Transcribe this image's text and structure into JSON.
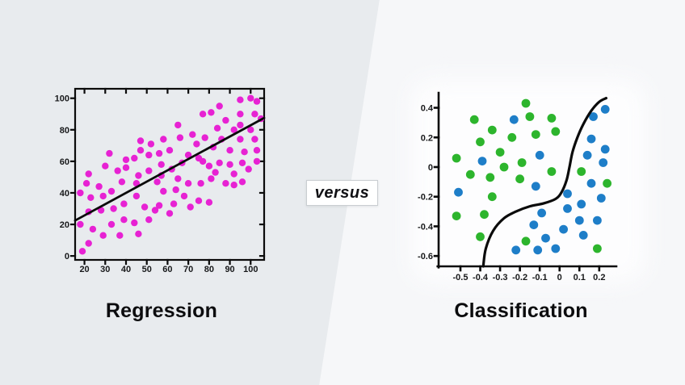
{
  "page": {
    "versus_label": "versus",
    "background": {
      "left_color": "#e8ebee",
      "right_color": "#f6f7f9",
      "divider_top_x": 470,
      "divider_bottom_x": 395
    }
  },
  "panels": {
    "left": {
      "title": "Regression"
    },
    "right": {
      "title": "Classification"
    }
  },
  "chart_data": [
    {
      "type": "scatter",
      "title": "Regression",
      "xlabel": "",
      "ylabel": "",
      "frame": "box",
      "grid": false,
      "legend": "none",
      "xlim": [
        15.5,
        106.5
      ],
      "ylim": [
        -2.5,
        106
      ],
      "x_tick_labels": [
        "20",
        "30",
        "40",
        "50",
        "60",
        "70",
        "80",
        "90",
        "100"
      ],
      "x_tick_values": [
        20,
        30,
        40,
        50,
        60,
        70,
        80,
        90,
        100
      ],
      "y_tick_labels": [
        "0",
        "20",
        "40",
        "60",
        "80",
        "100"
      ],
      "y_tick_values": [
        0,
        20,
        40,
        60,
        80,
        100
      ],
      "series": [
        {
          "name": "sample-points",
          "type": "points",
          "marker": "circle",
          "color": "#e722d3",
          "points": [
            [
              95,
              99
            ],
            [
              100,
              100
            ],
            [
              103,
              98
            ],
            [
              95,
              90
            ],
            [
              85,
              95
            ],
            [
              81,
              91
            ],
            [
              88,
              86
            ],
            [
              95,
              83
            ],
            [
              102,
              90
            ],
            [
              105,
              87
            ],
            [
              77,
              90
            ],
            [
              84,
              81
            ],
            [
              92,
              80
            ],
            [
              100,
              80
            ],
            [
              65,
              83
            ],
            [
              72,
              77
            ],
            [
              78,
              75
            ],
            [
              86,
              74
            ],
            [
              95,
              74
            ],
            [
              102,
              74
            ],
            [
              66,
              75
            ],
            [
              74,
              71
            ],
            [
              82,
              69
            ],
            [
              90,
              67
            ],
            [
              97,
              66
            ],
            [
              103,
              67
            ],
            [
              47,
              73
            ],
            [
              52,
              71
            ],
            [
              58,
              74
            ],
            [
              61,
              67
            ],
            [
              56,
              65
            ],
            [
              47,
              67
            ],
            [
              51,
              64
            ],
            [
              44,
              62
            ],
            [
              40,
              61
            ],
            [
              70,
              64
            ],
            [
              75,
              62
            ],
            [
              67,
              59
            ],
            [
              57,
              58
            ],
            [
              62,
              55
            ],
            [
              32,
              65
            ],
            [
              30,
              57
            ],
            [
              36,
              54
            ],
            [
              40,
              56
            ],
            [
              51,
              54
            ],
            [
              57,
              51
            ],
            [
              46,
              51
            ],
            [
              80,
              57
            ],
            [
              85,
              59
            ],
            [
              90,
              58
            ],
            [
              96,
              59
            ],
            [
              103,
              60
            ],
            [
              99,
              55
            ],
            [
              92,
              52
            ],
            [
              83,
              53
            ],
            [
              77,
              60
            ],
            [
              22,
              52
            ],
            [
              21,
              46
            ],
            [
              27,
              44
            ],
            [
              33,
              41
            ],
            [
              18,
              40
            ],
            [
              23,
              37
            ],
            [
              29,
              38
            ],
            [
              38,
              47
            ],
            [
              45,
              46
            ],
            [
              55,
              47
            ],
            [
              45,
              38
            ],
            [
              39,
              33
            ],
            [
              34,
              30
            ],
            [
              28,
              29
            ],
            [
              22,
              28
            ],
            [
              18,
              20
            ],
            [
              24,
              17
            ],
            [
              29,
              13
            ],
            [
              22,
              8
            ],
            [
              19,
              3
            ],
            [
              33,
              20
            ],
            [
              37,
              13
            ],
            [
              39,
              23
            ],
            [
              44,
              21
            ],
            [
              46,
              14
            ],
            [
              51,
              23
            ],
            [
              49,
              31
            ],
            [
              54,
              29
            ],
            [
              56,
              32
            ],
            [
              58,
              41
            ],
            [
              64,
              42
            ],
            [
              63,
              33
            ],
            [
              61,
              27
            ],
            [
              68,
              38
            ],
            [
              71,
              31
            ],
            [
              75,
              35
            ],
            [
              65,
              49
            ],
            [
              70,
              46
            ],
            [
              76,
              46
            ],
            [
              81,
              49
            ],
            [
              88,
              46
            ],
            [
              92,
              45
            ],
            [
              96,
              47
            ],
            [
              80,
              34
            ]
          ]
        },
        {
          "name": "regression-fit-line",
          "type": "line",
          "color": "#0b0b0b",
          "points": [
            [
              15.5,
              22.5
            ],
            [
              106.5,
              87.5
            ]
          ]
        }
      ]
    },
    {
      "type": "scatter",
      "title": "Classification",
      "xlabel": "",
      "ylabel": "",
      "frame": "axes",
      "grid": false,
      "legend": "none",
      "xlim": [
        -0.61,
        0.27
      ],
      "ylim": [
        -0.67,
        0.49
      ],
      "x_tick_labels": [
        "-0.5",
        "-0.4",
        "-0.3",
        "-0.2",
        "-0.1",
        "0",
        "0.1",
        "0.2"
      ],
      "x_tick_values": [
        -0.5,
        -0.4,
        -0.3,
        -0.2,
        -0.1,
        0,
        0.1,
        0.2
      ],
      "y_tick_labels": [
        "0.4",
        "0.2",
        "0",
        "-0.2",
        "-0.4",
        "-0.6"
      ],
      "y_tick_values": [
        0.4,
        0.2,
        0,
        -0.2,
        -0.4,
        -0.6
      ],
      "series": [
        {
          "name": "class-a-green",
          "type": "points",
          "marker": "circle",
          "color": "#2db52d",
          "points": [
            [
              -0.17,
              0.43
            ],
            [
              -0.43,
              0.32
            ],
            [
              -0.15,
              0.34
            ],
            [
              -0.04,
              0.33
            ],
            [
              -0.34,
              0.25
            ],
            [
              -0.02,
              0.24
            ],
            [
              -0.24,
              0.2
            ],
            [
              -0.12,
              0.22
            ],
            [
              -0.4,
              0.17
            ],
            [
              -0.3,
              0.1
            ],
            [
              -0.52,
              0.06
            ],
            [
              -0.28,
              0.0
            ],
            [
              -0.19,
              0.03
            ],
            [
              -0.45,
              -0.05
            ],
            [
              -0.35,
              -0.07
            ],
            [
              -0.04,
              -0.03
            ],
            [
              -0.2,
              -0.08
            ],
            [
              0.11,
              -0.03
            ],
            [
              0.24,
              -0.11
            ],
            [
              -0.34,
              -0.2
            ],
            [
              -0.52,
              -0.33
            ],
            [
              -0.38,
              -0.32
            ],
            [
              -0.4,
              -0.47
            ],
            [
              -0.17,
              -0.5
            ],
            [
              0.19,
              -0.55
            ]
          ]
        },
        {
          "name": "class-b-blue",
          "type": "points",
          "marker": "circle",
          "color": "#1e7ec8",
          "points": [
            [
              -0.23,
              0.32
            ],
            [
              0.23,
              0.39
            ],
            [
              0.17,
              0.34
            ],
            [
              -0.39,
              0.04
            ],
            [
              -0.1,
              0.08
            ],
            [
              0.16,
              0.19
            ],
            [
              0.23,
              0.12
            ],
            [
              0.14,
              0.08
            ],
            [
              0.22,
              0.03
            ],
            [
              -0.51,
              -0.17
            ],
            [
              -0.12,
              -0.13
            ],
            [
              0.16,
              -0.11
            ],
            [
              0.04,
              -0.18
            ],
            [
              0.11,
              -0.25
            ],
            [
              0.04,
              -0.28
            ],
            [
              0.21,
              -0.21
            ],
            [
              -0.09,
              -0.31
            ],
            [
              0.1,
              -0.36
            ],
            [
              0.19,
              -0.36
            ],
            [
              -0.13,
              -0.39
            ],
            [
              0.02,
              -0.42
            ],
            [
              0.12,
              -0.46
            ],
            [
              -0.07,
              -0.48
            ],
            [
              -0.22,
              -0.56
            ],
            [
              -0.11,
              -0.56
            ],
            [
              -0.02,
              -0.55
            ]
          ]
        },
        {
          "name": "decision-boundary",
          "type": "curve",
          "color": "#0b0b0b",
          "points": [
            [
              -0.385,
              -0.67
            ],
            [
              -0.372,
              -0.55
            ],
            [
              -0.335,
              -0.43
            ],
            [
              -0.28,
              -0.345
            ],
            [
              -0.22,
              -0.3
            ],
            [
              -0.15,
              -0.265
            ],
            [
              -0.08,
              -0.245
            ],
            [
              -0.02,
              -0.215
            ],
            [
              0.01,
              -0.17
            ],
            [
              0.035,
              -0.09
            ],
            [
              0.05,
              0.0
            ],
            [
              0.065,
              0.1
            ],
            [
              0.09,
              0.2
            ],
            [
              0.12,
              0.29
            ],
            [
              0.16,
              0.38
            ],
            [
              0.2,
              0.44
            ],
            [
              0.235,
              0.465
            ]
          ]
        }
      ]
    }
  ]
}
